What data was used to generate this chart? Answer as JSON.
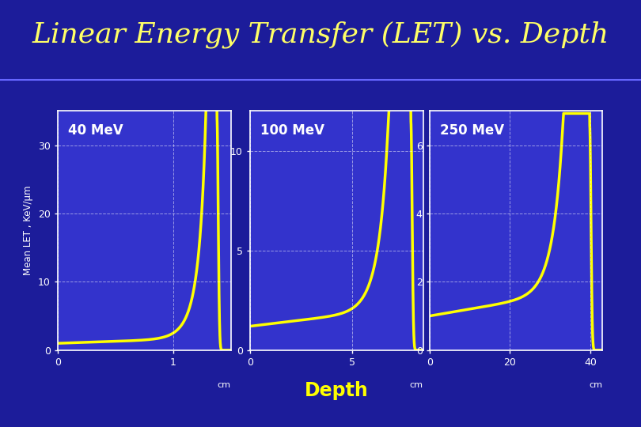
{
  "title": "Linear Energy Transfer (LET) vs. Depth",
  "title_color": "#FFFF66",
  "title_fontsize": 26,
  "bg_outer": "#1C1C9A",
  "bg_panel": "#3333CC",
  "bg_plot": "#3333CC",
  "line_color": "#FFFF00",
  "line_width": 2.5,
  "grid_color": "white",
  "grid_style": "--",
  "grid_alpha": 0.5,
  "tick_color": "white",
  "spine_color": "white",
  "text_color": "white",
  "depth_label_color": "#FFFF00",
  "sep_line_color": "#6666FF",
  "ylabel": "Mean LET , KeV/μm",
  "depth_label": "Depth",
  "plots": [
    {
      "title": "40 MeV",
      "xlim": [
        0,
        1.5
      ],
      "ylim": [
        0,
        35
      ],
      "xticks": [
        0,
        1
      ],
      "yticks": [
        0,
        10,
        20,
        30
      ],
      "unit": "cm",
      "bragg_peak_x": 1.38,
      "base_let": 1.0,
      "peak_height": 34.0
    },
    {
      "title": "100 MeV",
      "xlim": [
        0,
        8.5
      ],
      "ylim": [
        0,
        12
      ],
      "xticks": [
        0,
        5
      ],
      "yticks": [
        0,
        5,
        10
      ],
      "unit": "cm",
      "bragg_peak_x": 7.9,
      "base_let": 1.2,
      "peak_height": 11.5
    },
    {
      "title": "250 MeV",
      "xlim": [
        0,
        43
      ],
      "ylim": [
        0,
        7
      ],
      "xticks": [
        0,
        20,
        40
      ],
      "yticks": [
        0,
        2,
        4,
        6
      ],
      "unit": "cm",
      "bragg_peak_x": 39.8,
      "base_let": 1.0,
      "peak_height": 6.6
    }
  ]
}
